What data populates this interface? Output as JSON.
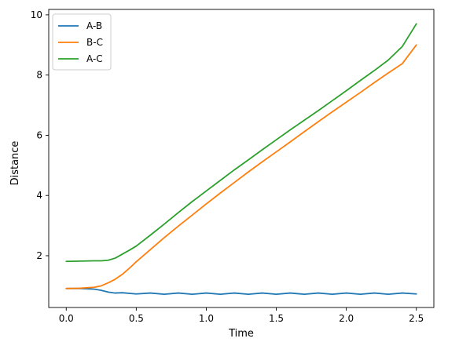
{
  "chart_data": {
    "type": "line",
    "title": "",
    "xlabel": "Time",
    "ylabel": "Distance",
    "xlim": [
      -0.125,
      2.625
    ],
    "ylim": [
      0.28,
      10.18
    ],
    "xticks": [
      0.0,
      0.5,
      1.0,
      1.5,
      2.0,
      2.5
    ],
    "xtick_labels": [
      "0.0",
      "0.5",
      "1.0",
      "1.5",
      "2.0",
      "2.5"
    ],
    "yticks": [
      2,
      4,
      6,
      8,
      10
    ],
    "ytick_labels": [
      "2",
      "4",
      "6",
      "8",
      "10"
    ],
    "grid": false,
    "legend_position": "top-left",
    "series": [
      {
        "name": "A-B",
        "color": "#1f77b4",
        "x": [
          0,
          0.1,
          0.2,
          0.25,
          0.3,
          0.35,
          0.4,
          0.5,
          0.6,
          0.7,
          0.8,
          0.9,
          1.0,
          1.1,
          1.2,
          1.3,
          1.4,
          1.5,
          1.6,
          1.7,
          1.8,
          1.9,
          2.0,
          2.1,
          2.2,
          2.3,
          2.4,
          2.5
        ],
        "y": [
          0.91,
          0.91,
          0.89,
          0.85,
          0.79,
          0.76,
          0.77,
          0.73,
          0.76,
          0.72,
          0.76,
          0.72,
          0.76,
          0.72,
          0.76,
          0.72,
          0.76,
          0.72,
          0.76,
          0.72,
          0.76,
          0.72,
          0.76,
          0.72,
          0.76,
          0.72,
          0.76,
          0.73
        ]
      },
      {
        "name": "B-C",
        "color": "#ff7f0e",
        "x": [
          0,
          0.1,
          0.2,
          0.25,
          0.3,
          0.35,
          0.4,
          0.45,
          0.5,
          0.6,
          0.7,
          0.8,
          0.9,
          1.0,
          1.1,
          1.2,
          1.3,
          1.4,
          1.5,
          1.6,
          1.7,
          1.8,
          1.9,
          2.0,
          2.1,
          2.2,
          2.3,
          2.4,
          2.5
        ],
        "y": [
          0.91,
          0.92,
          0.95,
          1.0,
          1.1,
          1.22,
          1.38,
          1.58,
          1.8,
          2.2,
          2.6,
          2.98,
          3.35,
          3.72,
          4.08,
          4.43,
          4.78,
          5.12,
          5.45,
          5.78,
          6.12,
          6.45,
          6.78,
          7.1,
          7.42,
          7.75,
          8.07,
          8.38,
          9.0
        ]
      },
      {
        "name": "A-C",
        "color": "#2ca02c",
        "x": [
          0,
          0.1,
          0.2,
          0.25,
          0.3,
          0.35,
          0.4,
          0.45,
          0.5,
          0.6,
          0.7,
          0.8,
          0.9,
          1.0,
          1.1,
          1.2,
          1.3,
          1.4,
          1.5,
          1.6,
          1.7,
          1.8,
          1.9,
          2.0,
          2.1,
          2.2,
          2.3,
          2.4,
          2.5
        ],
        "y": [
          1.81,
          1.82,
          1.83,
          1.83,
          1.85,
          1.92,
          2.05,
          2.18,
          2.32,
          2.68,
          3.05,
          3.43,
          3.8,
          4.15,
          4.5,
          4.85,
          5.18,
          5.52,
          5.85,
          6.18,
          6.5,
          6.82,
          7.15,
          7.48,
          7.82,
          8.15,
          8.5,
          8.95,
          9.7
        ]
      }
    ]
  }
}
